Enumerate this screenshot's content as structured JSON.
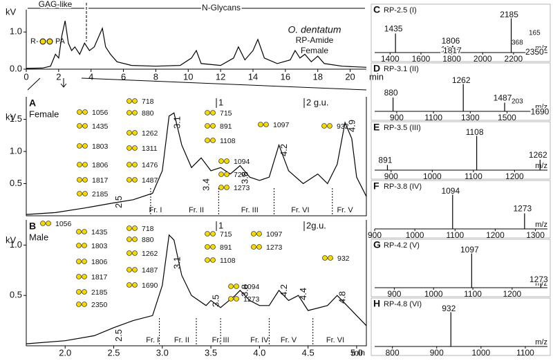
{
  "top": {
    "xlim": [
      0,
      21
    ],
    "ylim": [
      0,
      1.6
    ],
    "xticks": [
      0,
      2,
      4,
      6,
      8,
      10,
      12,
      14,
      16,
      18,
      20
    ],
    "yticks": [
      {
        "value": 0,
        "label": "0.0"
      },
      {
        "value": 1,
        "label": "1.0"
      }
    ],
    "xlabel": "min",
    "ylabel": "kV",
    "regions": [
      "GAG-like",
      "N-Glycans"
    ],
    "legend": "R-",
    "legend_end": "PA",
    "notes": [
      "O. dentatum",
      "RP-Amide",
      "Female"
    ],
    "x": [
      0,
      1,
      1.5,
      1.8,
      2,
      2.2,
      2.4,
      2.6,
      2.8,
      3,
      3.3,
      3.6,
      3.9,
      4.2,
      4.5,
      4.7,
      4.9,
      5.2,
      5.6,
      6.5,
      8,
      9.5,
      10.2,
      10.5,
      10.8,
      12,
      12.8,
      13.1,
      13.5,
      14,
      14.3,
      14.7,
      15.5,
      16.3,
      16.6,
      16.9,
      17.2,
      17.6,
      18,
      18.4,
      19.5,
      21
    ],
    "y": [
      0.02,
      0.03,
      0.08,
      0.4,
      0.3,
      0.9,
      1.3,
      0.7,
      0.5,
      0.6,
      0.4,
      0.7,
      0.5,
      0.6,
      0.9,
      1.1,
      0.6,
      0.4,
      0.2,
      0.1,
      0.08,
      0.1,
      0.3,
      0.5,
      0.15,
      0.1,
      0.3,
      0.6,
      0.25,
      0.5,
      0.8,
      0.3,
      0.15,
      0.25,
      0.5,
      0.3,
      0.4,
      0.2,
      0.35,
      0.15,
      0.08,
      0.05
    ]
  },
  "xaxis": {
    "xlim": [
      1.6,
      5.1
    ],
    "xticks": [
      {
        "value": 2,
        "label": "2.0"
      },
      2.5,
      {
        "value": 3,
        "label": "3.0"
      },
      3.5,
      {
        "value": 4,
        "label": "4.0"
      },
      4.5,
      {
        "value": 5,
        "label": "5.0"
      }
    ],
    "xlabel": "min"
  },
  "A": {
    "letter": "A",
    "name": "Female",
    "ylabel": "kV",
    "ylim": [
      0,
      1.85
    ],
    "yticks": [
      0.5,
      {
        "value": 1,
        "label": "1.0"
      },
      1.5
    ],
    "gu": [
      "1",
      "2 g.u."
    ],
    "x": [
      1.6,
      1.9,
      2.2,
      2.5,
      2.7,
      2.9,
      3.0,
      3.07,
      3.12,
      3.2,
      3.3,
      3.4,
      3.5,
      3.6,
      3.7,
      3.8,
      3.9,
      4.0,
      4.1,
      4.2,
      4.3,
      4.45,
      4.6,
      4.7,
      4.8,
      4.88,
      4.95,
      5.0,
      5.1
    ],
    "y": [
      0.02,
      0.05,
      0.12,
      0.2,
      0.25,
      0.35,
      0.7,
      1.55,
      1.6,
      1.1,
      0.75,
      0.9,
      0.7,
      0.75,
      0.65,
      0.78,
      0.6,
      0.55,
      0.6,
      1.1,
      0.7,
      0.5,
      0.65,
      0.5,
      0.8,
      1.45,
      1.2,
      0.6,
      0.3
    ],
    "peaks": [
      2.5,
      3.1,
      3.4,
      3.8,
      4.2,
      4.9
    ],
    "fractions": [
      "Fr. I",
      "Fr. II",
      "Fr. III",
      "Fr. VI",
      "Fr. V"
    ],
    "labels": [
      1056,
      1435,
      1803,
      1806,
      1817,
      2185,
      718,
      880,
      1262,
      1311,
      1476,
      1487,
      715,
      891,
      1108,
      1094,
      729,
      1273,
      1097,
      932
    ]
  },
  "B": {
    "letter": "B",
    "name": "Male",
    "ylabel": "kV",
    "ylim": [
      0,
      1.25
    ],
    "yticks": [
      0.5,
      {
        "value": 1,
        "label": "1.0"
      }
    ],
    "gu": [
      "1",
      "2g.u."
    ],
    "x": [
      1.6,
      2.0,
      2.3,
      2.5,
      2.7,
      2.9,
      3.0,
      3.07,
      3.12,
      3.2,
      3.3,
      3.45,
      3.5,
      3.6,
      3.75,
      3.8,
      3.9,
      4.0,
      4.1,
      4.2,
      4.3,
      4.4,
      4.5,
      4.7,
      4.8,
      4.9,
      5.0,
      5.1
    ],
    "y": [
      0.02,
      0.05,
      0.1,
      0.18,
      0.25,
      0.3,
      0.6,
      1.1,
      1.05,
      0.7,
      0.5,
      0.4,
      0.45,
      0.38,
      0.5,
      0.55,
      0.45,
      0.4,
      0.4,
      0.55,
      0.45,
      0.5,
      0.35,
      0.4,
      0.5,
      0.4,
      0.3,
      0.2
    ],
    "peaks": [
      2.5,
      3.1,
      3.5,
      3.8,
      4.2,
      4.4,
      4.8
    ],
    "fractions": [
      "Fr. I",
      "Fr. II",
      "Fr. III",
      "Fr. IV",
      "Fr. V",
      "Fr. VI"
    ],
    "labels": [
      1056,
      1435,
      1803,
      1806,
      1817,
      2185,
      2350,
      718,
      880,
      1262,
      1487,
      1690,
      715,
      891,
      1108,
      1097,
      1273,
      1094,
      1273,
      932
    ]
  },
  "spectra": [
    {
      "letter": "C",
      "title": "RP-2.5 (I)",
      "xlim": [
        1300,
        2420
      ],
      "xticks": [
        1400,
        1600,
        1800,
        2000,
        2200
      ],
      "xlabel": "m/z",
      "x": [
        1435,
        1803,
        1806,
        1817,
        2185,
        2350
      ],
      "values": [
        0.55,
        0.15,
        0.2,
        0.12,
        1.0,
        0.08
      ],
      "annotations": [
        "368",
        "165"
      ]
    },
    {
      "letter": "D",
      "title": "RP-3.1 (II)",
      "xlim": [
        780,
        1720
      ],
      "xticks": [
        900,
        1100,
        1300,
        1500
      ],
      "xlabel": "m/z",
      "x": [
        880,
        1262,
        1487,
        1690
      ],
      "values": [
        0.4,
        1.0,
        0.25,
        0.05
      ],
      "annotations": [
        "203"
      ]
    },
    {
      "letter": "E",
      "title": "RP-3.5 (III)",
      "xlim": [
        860,
        1280
      ],
      "xticks": [
        900,
        1000,
        1100,
        1200
      ],
      "xlabel": "m/z",
      "x": [
        891,
        1108,
        1262
      ],
      "values": [
        0.15,
        1.0,
        0.3
      ],
      "annotations": []
    },
    {
      "letter": "F",
      "title": "RP-3.8 (IV)",
      "xlim": [
        900,
        1330
      ],
      "xticks": [
        900,
        1000,
        1100,
        1200,
        1300
      ],
      "xlabel": "m/z",
      "x": [
        1094,
        1273
      ],
      "values": [
        1.0,
        0.45
      ],
      "annotations": []
    },
    {
      "letter": "G",
      "title": "RP-4.2 (V)",
      "xlim": [
        850,
        1290
      ],
      "xticks": [
        900,
        1000,
        1100,
        1200
      ],
      "xlabel": "m/z",
      "x": [
        1097,
        1273
      ],
      "values": [
        1.0,
        0.1
      ],
      "annotations": []
    },
    {
      "letter": "H",
      "title": "RP-4.8 (VI)",
      "xlim": [
        760,
        1150
      ],
      "xticks": [
        800,
        900,
        1000,
        1100
      ],
      "xlabel": "m/z",
      "x": [
        932
      ],
      "values": [
        1.0
      ],
      "annotations": []
    }
  ]
}
